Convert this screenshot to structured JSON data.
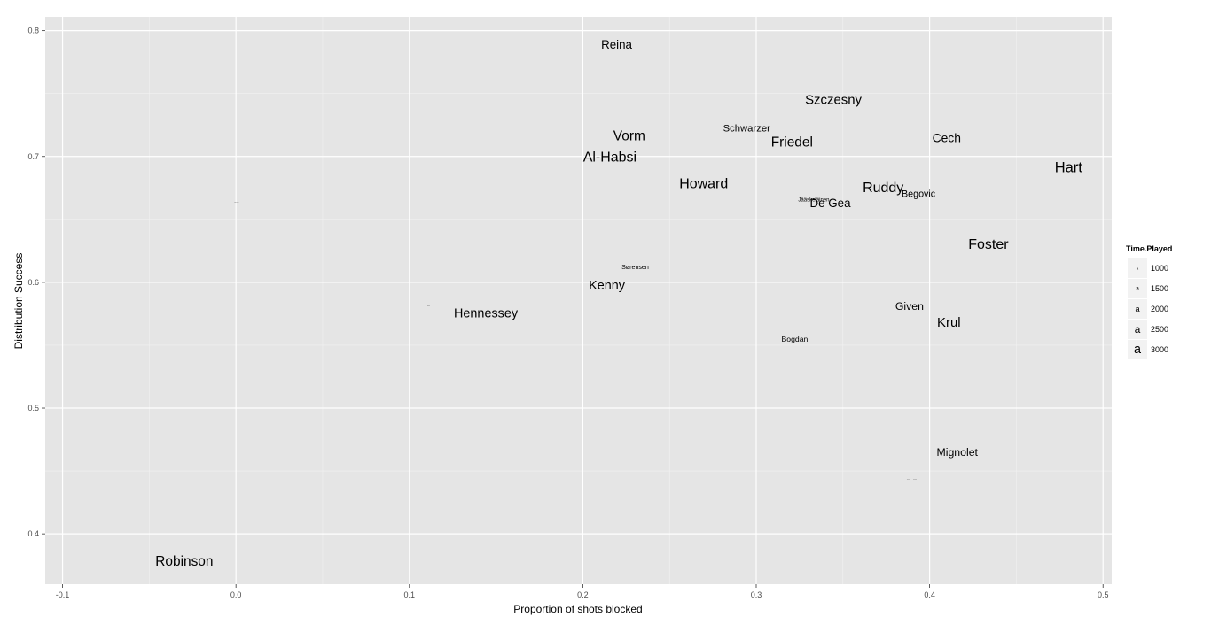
{
  "chart_data": {
    "type": "scatter",
    "title": "",
    "xlabel": "Proportion of shots blocked",
    "ylabel": "Distribution Success",
    "xlim": [
      -0.11,
      0.505
    ],
    "ylim": [
      0.36,
      0.811
    ],
    "x_ticks": [
      -0.1,
      0.0,
      0.1,
      0.2,
      0.3,
      0.4,
      0.5
    ],
    "x_tick_labels": [
      "-0.1",
      "0.0",
      "0.1",
      "0.2",
      "0.3",
      "0.4",
      "0.5"
    ],
    "y_ticks": [
      0.4,
      0.5,
      0.6,
      0.7,
      0.8
    ],
    "y_tick_labels": [
      "0.4",
      "0.5",
      "0.6",
      "0.7",
      "0.8"
    ],
    "grid": true,
    "background": "#e5e5e5",
    "grid_color": "#ffffff",
    "legend": {
      "title": "Time.Played",
      "placement": "right",
      "glyph": "a",
      "entries": [
        {
          "label": "1000",
          "value": 1000
        },
        {
          "label": "1500",
          "value": 1500
        },
        {
          "label": "2000",
          "value": 2000
        },
        {
          "label": "2500",
          "value": 2500
        },
        {
          "label": "3000",
          "value": 3000
        }
      ]
    },
    "points": [
      {
        "label": "Reina",
        "x": 0.2195,
        "y": 0.789,
        "time_played": 2800
      },
      {
        "label": "Szczesny",
        "x": 0.3445,
        "y": 0.745,
        "time_played": 3100
      },
      {
        "label": "Schwarzer",
        "x": 0.2945,
        "y": 0.722,
        "time_played": 2400
      },
      {
        "label": "Cech",
        "x": 0.4098,
        "y": 0.715,
        "time_played": 2900
      },
      {
        "label": "Vorm",
        "x": 0.2268,
        "y": 0.716,
        "time_played": 3200
      },
      {
        "label": "Friedel",
        "x": 0.3206,
        "y": 0.711,
        "time_played": 3200
      },
      {
        "label": "Al-Habsi",
        "x": 0.2156,
        "y": 0.699,
        "time_played": 3300
      },
      {
        "label": "Hart",
        "x": 0.4801,
        "y": 0.691,
        "time_played": 3400
      },
      {
        "label": "Howard",
        "x": 0.2697,
        "y": 0.678,
        "time_played": 3300
      },
      {
        "label": "Ruddy",
        "x": 0.3732,
        "y": 0.675,
        "time_played": 3300
      },
      {
        "label": "Begovic",
        "x": 0.3936,
        "y": 0.67,
        "time_played": 2300
      },
      {
        "label": "Jääskeläinen",
        "x": 0.3332,
        "y": 0.665,
        "time_played": 1400
      },
      {
        "label": "De Gea",
        "x": 0.3427,
        "y": 0.663,
        "time_played": 2800
      },
      {
        "label": "Lindegaard",
        "x": 0.0003,
        "y": 0.663,
        "time_played": 450
      },
      {
        "label": "Foster",
        "x": 0.4339,
        "y": 0.63,
        "time_played": 3300
      },
      {
        "label": "Mannone",
        "x": -0.0843,
        "y": 0.631,
        "time_played": 450
      },
      {
        "label": "Sørensen",
        "x": 0.2302,
        "y": 0.612,
        "time_played": 1600
      },
      {
        "label": "Kenny",
        "x": 0.2139,
        "y": 0.597,
        "time_played": 3000
      },
      {
        "label": "Given",
        "x": 0.3884,
        "y": 0.581,
        "time_played": 2600
      },
      {
        "label": "Button",
        "x": 0.1111,
        "y": 0.581,
        "time_played": 450
      },
      {
        "label": "Hennessey",
        "x": 0.1441,
        "y": 0.575,
        "time_played": 3000
      },
      {
        "label": "Krul",
        "x": 0.4111,
        "y": 0.568,
        "time_played": 3100
      },
      {
        "label": "Bogdan",
        "x": 0.3222,
        "y": 0.555,
        "time_played": 1900
      },
      {
        "label": "Mignolet",
        "x": 0.4159,
        "y": 0.465,
        "time_played": 2600
      },
      {
        "label": "Gerken",
        "x": 0.3877,
        "y": 0.443,
        "time_played": 450
      },
      {
        "label": "Begovic",
        "x": 0.3916,
        "y": 0.443,
        "time_played": 450
      },
      {
        "label": "Robinson",
        "x": -0.0298,
        "y": 0.378,
        "time_played": 3200
      }
    ]
  }
}
